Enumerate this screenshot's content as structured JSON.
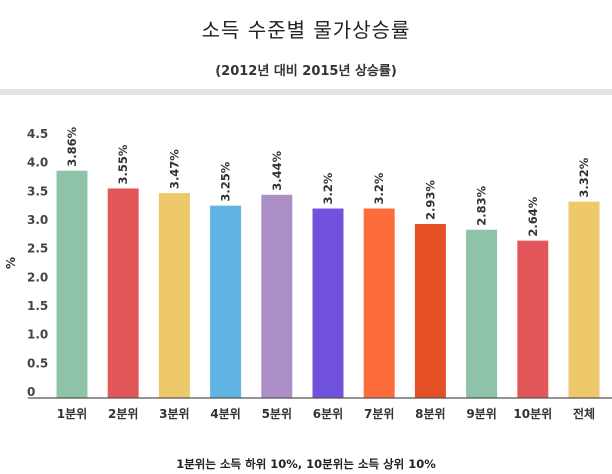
{
  "title": "소득 수준별 물가상승률",
  "subtitle": "(2012년 대비 2015년 상승률)",
  "footnote": "1분위는 소득 하위 10%, 10분위는 소득 상위 10%",
  "chart_data": {
    "type": "bar",
    "categories": [
      "1분위",
      "2분위",
      "3분위",
      "4분위",
      "5분위",
      "6분위",
      "7분위",
      "8분위",
      "9분위",
      "10분위",
      "전체"
    ],
    "values": [
      3.86,
      3.55,
      3.47,
      3.25,
      3.44,
      3.2,
      3.2,
      2.93,
      2.83,
      2.64,
      3.32
    ],
    "value_labels": [
      "3.86%",
      "3.55%",
      "3.47%",
      "3.25%",
      "3.44%",
      "3.2%",
      "3.2%",
      "2.93%",
      "2.83%",
      "2.64%",
      "3.32%"
    ],
    "colors": [
      "#8fc3a9",
      "#e15759",
      "#edc96a",
      "#5fb4e4",
      "#ad8fc7",
      "#7052dc",
      "#ff6c3b",
      "#e54f24",
      "#8fc3a9",
      "#e15759",
      "#edc96a"
    ],
    "title": "소득 수준별 물가상승률",
    "subtitle": "(2012년 대비 2015년 상승률)",
    "xlabel": "",
    "ylabel": "%",
    "yticks": [
      "0",
      "0.5",
      "1.0",
      "1.5",
      "2.0",
      "2.5",
      "3.0",
      "3.5",
      "4.0",
      "4.5"
    ],
    "ylim": [
      0,
      4.5
    ],
    "grid": false,
    "legend": "none"
  }
}
